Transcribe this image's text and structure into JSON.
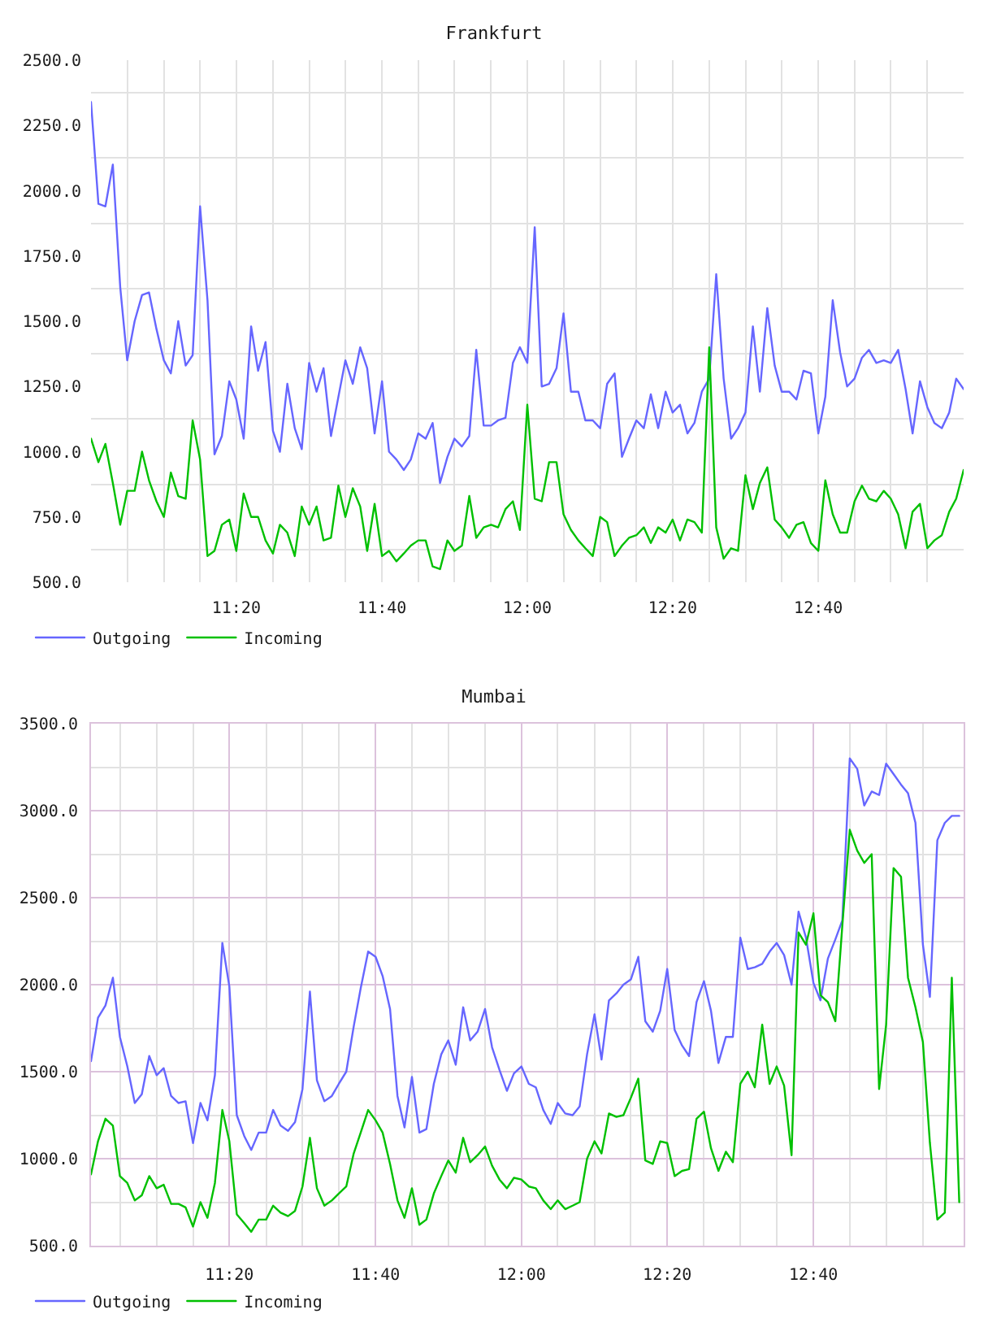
{
  "chart_data": [
    {
      "type": "line",
      "title": "Frankfurt",
      "x": [
        11,
        11.017,
        11.033,
        11.05,
        11.067,
        11.083,
        11.1,
        11.117,
        11.133,
        11.15,
        11.167,
        11.183,
        11.2,
        11.217,
        11.233,
        11.25,
        11.267,
        11.283,
        11.3,
        11.317,
        11.333,
        11.35,
        11.367,
        11.383,
        11.4,
        11.417,
        11.433,
        11.45,
        11.467,
        11.483,
        11.5,
        11.517,
        11.533,
        11.55,
        11.567,
        11.583,
        11.6,
        11.617,
        11.633,
        11.65,
        11.667,
        11.683,
        11.7,
        11.717,
        11.733,
        11.75,
        11.767,
        11.783,
        11.8,
        11.817,
        11.833,
        11.85,
        11.867,
        11.883,
        11.9,
        11.917,
        11.933,
        11.95,
        11.967,
        11.983,
        12,
        12.017,
        12.033,
        12.05,
        12.067,
        12.083,
        12.1,
        12.117,
        12.133,
        12.15,
        12.167,
        12.183,
        12.2,
        12.217,
        12.233,
        12.25,
        12.267,
        12.283,
        12.3,
        12.317,
        12.333,
        12.35,
        12.367,
        12.383,
        12.4,
        12.417,
        12.433,
        12.45,
        12.467,
        12.483,
        12.5,
        12.517,
        12.533,
        12.55,
        12.567,
        12.583,
        12.6,
        12.617,
        12.633,
        12.65,
        12.667,
        12.683,
        12.7,
        12.717,
        12.733,
        12.75,
        12.767,
        12.783,
        12.8,
        12.817,
        12.833,
        12.85,
        12.867,
        12.883,
        12.9,
        12.917,
        12.933,
        12.95,
        12.967,
        12.983,
        13
      ],
      "xlim": [
        11,
        13
      ],
      "xticks": [
        {
          "value": 11.083,
          "label": null
        },
        {
          "value": 11.167,
          "label": null
        },
        {
          "value": 11.25,
          "label": null
        },
        {
          "value": 11.333,
          "label": "11:20"
        },
        {
          "value": 11.417,
          "label": null
        },
        {
          "value": 11.5,
          "label": null
        },
        {
          "value": 11.583,
          "label": null
        },
        {
          "value": 11.667,
          "label": "11:40"
        },
        {
          "value": 11.75,
          "label": null
        },
        {
          "value": 11.833,
          "label": null
        },
        {
          "value": 11.917,
          "label": null
        },
        {
          "value": 12,
          "label": "12:00"
        },
        {
          "value": 12.083,
          "label": null
        },
        {
          "value": 12.167,
          "label": null
        },
        {
          "value": 12.25,
          "label": null
        },
        {
          "value": 12.333,
          "label": "12:20"
        },
        {
          "value": 12.417,
          "label": null
        },
        {
          "value": 12.5,
          "label": null
        },
        {
          "value": 12.583,
          "label": null
        },
        {
          "value": 12.667,
          "label": "12:40"
        },
        {
          "value": 12.75,
          "label": null
        },
        {
          "value": 12.833,
          "label": null
        },
        {
          "value": 12.917,
          "label": null
        }
      ],
      "ylim": [
        500,
        2500
      ],
      "yticks": [
        {
          "value": 500,
          "label": "500.0"
        },
        {
          "value": 625,
          "label": null
        },
        {
          "value": 750,
          "label": "750.0"
        },
        {
          "value": 875,
          "label": null
        },
        {
          "value": 1000,
          "label": "1000.0"
        },
        {
          "value": 1125,
          "label": null
        },
        {
          "value": 1250,
          "label": "1250.0"
        },
        {
          "value": 1375,
          "label": null
        },
        {
          "value": 1500,
          "label": "1500.0"
        },
        {
          "value": 1625,
          "label": null
        },
        {
          "value": 1750,
          "label": "1750.0"
        },
        {
          "value": 1875,
          "label": null
        },
        {
          "value": 2000,
          "label": "2000.0"
        },
        {
          "value": 2125,
          "label": null
        },
        {
          "value": 2250,
          "label": "2250.0"
        },
        {
          "value": 2375,
          "label": null
        },
        {
          "value": 2500,
          "label": "2500.0"
        }
      ],
      "grid": true,
      "legend": "bottom left",
      "series": [
        {
          "name": "Outgoing",
          "color": "#6666ff",
          "values": [
            2340,
            1950,
            1940,
            2100,
            1630,
            1350,
            1500,
            1600,
            1610,
            1470,
            1350,
            1300,
            1500,
            1330,
            1370,
            1940,
            1580,
            990,
            1060,
            1270,
            1200,
            1050,
            1480,
            1310,
            1420,
            1080,
            1000,
            1260,
            1090,
            1010,
            1340,
            1230,
            1320,
            1060,
            1210,
            1350,
            1260,
            1400,
            1320,
            1070,
            1270,
            1000,
            970,
            930,
            970,
            1070,
            1050,
            1110,
            880,
            980,
            1050,
            1020,
            1060,
            1390,
            1100,
            1100,
            1120,
            1130,
            1340,
            1400,
            1340,
            1860,
            1250,
            1260,
            1320,
            1530,
            1230,
            1230,
            1120,
            1120,
            1090,
            1260,
            1300,
            980,
            1050,
            1120,
            1090,
            1220,
            1090,
            1230,
            1150,
            1180,
            1070,
            1110,
            1230,
            1280,
            1680,
            1280,
            1050,
            1090,
            1150,
            1480,
            1230,
            1550,
            1330,
            1230,
            1230,
            1200,
            1310,
            1300,
            1070,
            1210,
            1580,
            1380,
            1250,
            1280,
            1360,
            1390,
            1340,
            1350,
            1340,
            1390,
            1240,
            1070,
            1270,
            1170,
            1110,
            1090,
            1150,
            1280,
            1240
          ]
        },
        {
          "name": "Incoming",
          "color": "#00c000",
          "values": [
            1050,
            960,
            1030,
            880,
            720,
            850,
            850,
            1000,
            890,
            810,
            750,
            920,
            830,
            820,
            1120,
            970,
            600,
            620,
            720,
            740,
            620,
            840,
            750,
            750,
            660,
            610,
            720,
            690,
            600,
            790,
            720,
            790,
            660,
            670,
            870,
            750,
            860,
            790,
            620,
            800,
            600,
            620,
            580,
            610,
            640,
            660,
            660,
            560,
            550,
            660,
            620,
            640,
            830,
            670,
            710,
            720,
            710,
            780,
            810,
            700,
            1180,
            820,
            810,
            960,
            960,
            760,
            700,
            660,
            630,
            600,
            750,
            730,
            600,
            640,
            670,
            680,
            710,
            650,
            710,
            690,
            740,
            660,
            740,
            730,
            690,
            1400,
            710,
            590,
            630,
            620,
            910,
            780,
            880,
            940,
            740,
            710,
            670,
            720,
            730,
            650,
            620,
            890,
            760,
            690,
            690,
            810,
            870,
            820,
            810,
            850,
            820,
            760,
            630,
            770,
            800,
            630,
            660,
            680,
            770,
            820,
            930
          ]
        }
      ]
    },
    {
      "type": "line",
      "title": "Mumbai",
      "x": [
        11.017,
        11.033,
        11.05,
        11.067,
        11.083,
        11.1,
        11.117,
        11.133,
        11.15,
        11.167,
        11.183,
        11.2,
        11.217,
        11.233,
        11.25,
        11.267,
        11.283,
        11.3,
        11.317,
        11.333,
        11.35,
        11.367,
        11.383,
        11.4,
        11.417,
        11.433,
        11.45,
        11.467,
        11.483,
        11.5,
        11.517,
        11.533,
        11.55,
        11.567,
        11.583,
        11.6,
        11.617,
        11.633,
        11.65,
        11.667,
        11.683,
        11.7,
        11.717,
        11.733,
        11.75,
        11.767,
        11.783,
        11.8,
        11.817,
        11.833,
        11.85,
        11.867,
        11.883,
        11.9,
        11.917,
        11.933,
        11.95,
        11.967,
        11.983,
        12,
        12.017,
        12.033,
        12.05,
        12.067,
        12.083,
        12.1,
        12.117,
        12.133,
        12.15,
        12.167,
        12.183,
        12.2,
        12.217,
        12.233,
        12.25,
        12.267,
        12.283,
        12.3,
        12.317,
        12.333,
        12.35,
        12.367,
        12.383,
        12.4,
        12.417,
        12.433,
        12.45,
        12.467,
        12.483,
        12.5,
        12.517,
        12.533,
        12.55,
        12.567,
        12.583,
        12.6,
        12.617,
        12.633,
        12.65,
        12.667,
        12.683,
        12.7,
        12.717,
        12.733,
        12.75,
        12.767,
        12.783,
        12.8,
        12.817,
        12.833,
        12.85,
        12.867,
        12.883,
        12.9,
        12.917,
        12.933,
        12.95,
        12.967,
        12.983,
        13
      ],
      "xlim": [
        11.017,
        13.01
      ],
      "xticks": [
        {
          "value": 11.083,
          "label": null
        },
        {
          "value": 11.167,
          "label": null
        },
        {
          "value": 11.25,
          "label": null
        },
        {
          "value": 11.333,
          "label": "11:20"
        },
        {
          "value": 11.417,
          "label": null
        },
        {
          "value": 11.5,
          "label": null
        },
        {
          "value": 11.583,
          "label": null
        },
        {
          "value": 11.667,
          "label": "11:40"
        },
        {
          "value": 11.75,
          "label": null
        },
        {
          "value": 11.833,
          "label": null
        },
        {
          "value": 11.917,
          "label": null
        },
        {
          "value": 12,
          "label": "12:00"
        },
        {
          "value": 12.083,
          "label": null
        },
        {
          "value": 12.167,
          "label": null
        },
        {
          "value": 12.25,
          "label": null
        },
        {
          "value": 12.333,
          "label": "12:20"
        },
        {
          "value": 12.417,
          "label": null
        },
        {
          "value": 12.5,
          "label": null
        },
        {
          "value": 12.583,
          "label": null
        },
        {
          "value": 12.667,
          "label": "12:40"
        },
        {
          "value": 12.75,
          "label": null
        },
        {
          "value": 12.833,
          "label": null
        },
        {
          "value": 12.917,
          "label": null
        }
      ],
      "ylim": [
        500,
        3500
      ],
      "yticks": [
        {
          "value": 500,
          "label": "500.0"
        },
        {
          "value": 750,
          "label": null
        },
        {
          "value": 1000,
          "label": "1000.0"
        },
        {
          "value": 1250,
          "label": null
        },
        {
          "value": 1500,
          "label": "1500.0"
        },
        {
          "value": 1750,
          "label": null
        },
        {
          "value": 2000,
          "label": "2000.0"
        },
        {
          "value": 2250,
          "label": null
        },
        {
          "value": 2500,
          "label": "2500.0"
        },
        {
          "value": 2750,
          "label": null
        },
        {
          "value": 3000,
          "label": "3000.0"
        },
        {
          "value": 3250,
          "label": null
        },
        {
          "value": 3500,
          "label": "3500.0"
        }
      ],
      "grid": true,
      "legend": "bottom left",
      "series": [
        {
          "name": "Outgoing",
          "color": "#6666ff",
          "values": [
            1560,
            1810,
            1880,
            2040,
            1700,
            1530,
            1320,
            1370,
            1590,
            1480,
            1520,
            1360,
            1320,
            1330,
            1090,
            1320,
            1220,
            1480,
            2240,
            1990,
            1250,
            1130,
            1050,
            1150,
            1150,
            1280,
            1190,
            1160,
            1210,
            1400,
            1960,
            1450,
            1330,
            1360,
            1430,
            1500,
            1760,
            1980,
            2190,
            2160,
            2050,
            1860,
            1360,
            1180,
            1470,
            1150,
            1170,
            1430,
            1600,
            1680,
            1540,
            1870,
            1680,
            1730,
            1860,
            1640,
            1510,
            1390,
            1490,
            1530,
            1430,
            1410,
            1280,
            1200,
            1320,
            1260,
            1250,
            1300,
            1600,
            1830,
            1570,
            1910,
            1950,
            2000,
            2030,
            2160,
            1790,
            1730,
            1850,
            2090,
            1740,
            1650,
            1590,
            1900,
            2020,
            1850,
            1550,
            1700,
            1700,
            2270,
            2090,
            2100,
            2120,
            2190,
            2240,
            2170,
            2000,
            2420,
            2270,
            2010,
            1910,
            2150,
            2260,
            2370,
            3300,
            3240,
            3030,
            3110,
            3090,
            3270,
            3210,
            3150,
            3100,
            2930,
            2230,
            1930,
            2830,
            2930,
            2970,
            2970
          ]
        },
        {
          "name": "Incoming",
          "color": "#00c000",
          "values": [
            910,
            1100,
            1230,
            1190,
            900,
            860,
            760,
            790,
            900,
            830,
            850,
            740,
            740,
            720,
            610,
            750,
            660,
            860,
            1280,
            1100,
            680,
            630,
            580,
            650,
            650,
            730,
            690,
            670,
            700,
            840,
            1120,
            830,
            730,
            760,
            800,
            840,
            1030,
            1150,
            1280,
            1220,
            1150,
            970,
            760,
            660,
            830,
            620,
            650,
            800,
            900,
            990,
            920,
            1120,
            980,
            1020,
            1070,
            960,
            880,
            830,
            890,
            880,
            840,
            830,
            760,
            710,
            760,
            710,
            730,
            750,
            1000,
            1100,
            1030,
            1260,
            1240,
            1250,
            1350,
            1460,
            990,
            970,
            1100,
            1090,
            900,
            930,
            940,
            1230,
            1270,
            1060,
            930,
            1040,
            980,
            1430,
            1500,
            1410,
            1770,
            1430,
            1530,
            1420,
            1020,
            2300,
            2230,
            2410,
            1940,
            1900,
            1790,
            2340,
            2890,
            2770,
            2700,
            2750,
            1400,
            1770,
            2670,
            2620,
            2040,
            1870,
            1670,
            1090,
            650,
            690,
            2040,
            750
          ]
        }
      ]
    }
  ]
}
